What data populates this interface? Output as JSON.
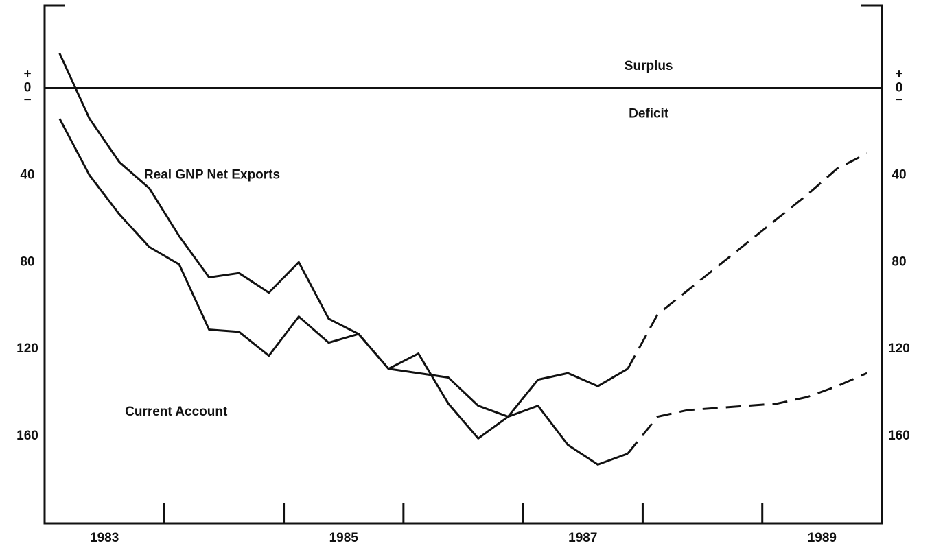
{
  "chart_data": {
    "type": "line",
    "x": [
      1983.125,
      1983.375,
      1983.625,
      1983.875,
      1984.125,
      1984.375,
      1984.625,
      1984.875,
      1985.125,
      1985.375,
      1985.625,
      1985.875,
      1986.125,
      1986.375,
      1986.625,
      1986.875,
      1987.125,
      1987.375,
      1987.625,
      1987.875,
      1988.125,
      1988.375,
      1988.625,
      1988.875,
      1989.125,
      1989.375,
      1989.625,
      1989.875
    ],
    "series": [
      {
        "name": "Real GNP Net Exports",
        "color": "#111111",
        "values": [
          -16,
          14,
          34,
          46,
          68,
          87,
          85,
          94,
          80,
          106,
          113,
          129,
          122,
          145,
          161,
          151,
          134,
          131,
          137,
          129,
          104,
          93,
          82,
          71,
          60,
          49,
          37,
          30
        ]
      },
      {
        "name": "Current Account",
        "color": "#111111",
        "values": [
          14,
          40,
          58,
          73,
          81,
          111,
          112,
          123,
          105,
          117,
          113,
          129,
          131,
          133,
          146,
          151,
          146,
          164,
          173,
          168,
          151,
          148,
          147,
          146,
          145,
          142,
          137,
          131
        ]
      }
    ],
    "projection_start": 1987.875,
    "xlim": [
      1983,
      1990
    ],
    "xtick_marks": [
      1984,
      1985,
      1986,
      1987,
      1988,
      1989
    ],
    "xticks": [
      {
        "value": 1983.5,
        "label": "1983"
      },
      {
        "value": 1985.5,
        "label": "1985"
      },
      {
        "value": 1987.5,
        "label": "1987"
      },
      {
        "value": 1989.5,
        "label": "1989"
      }
    ],
    "ylim": [
      -38,
      200
    ],
    "y_inverted": true,
    "yticks": [
      0,
      40,
      80,
      120,
      160
    ],
    "zero_signs": [
      "+",
      "−"
    ],
    "annotations": [
      {
        "text": "Surplus",
        "x": 1988.05,
        "y": -10
      },
      {
        "text": "Deficit",
        "x": 1988.05,
        "y": 12
      },
      {
        "text": "Real GNP Net Exports",
        "x": 1984.4,
        "y": 40
      },
      {
        "text": "Current Account",
        "x": 1984.1,
        "y": 149
      }
    ]
  }
}
